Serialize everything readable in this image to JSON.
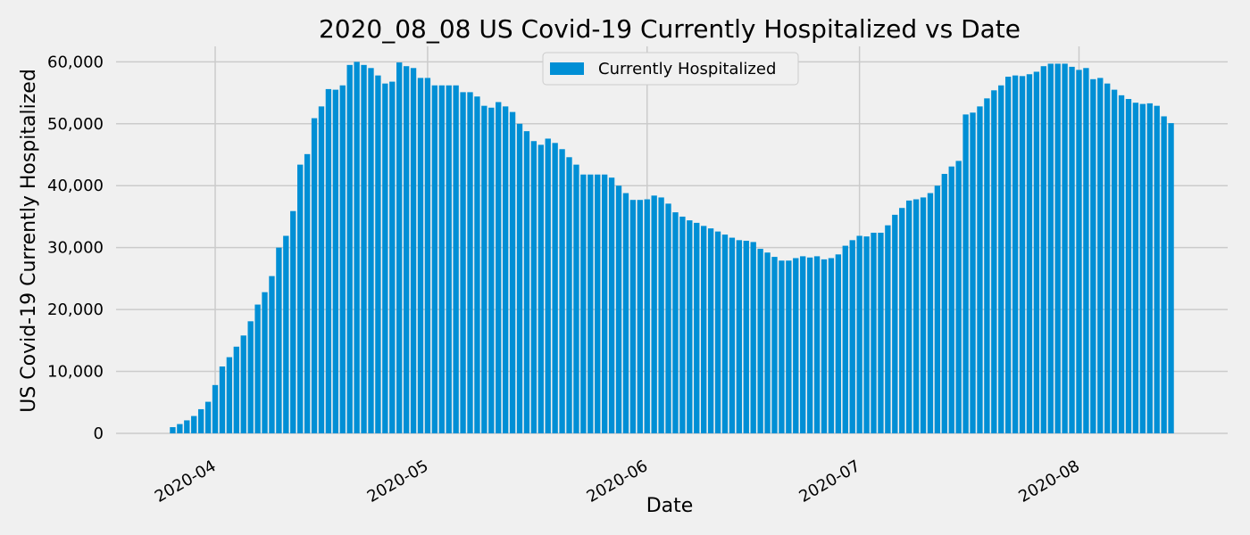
{
  "chart_data": {
    "type": "bar",
    "title": "2020_08_08  US Covid-19 Currently Hospitalized vs Date",
    "xlabel": "Date",
    "ylabel": "US Covid-19 Currently Hospitalized",
    "legend": {
      "label": "Currently Hospitalized",
      "placement": "top-center"
    },
    "grid": true,
    "bar_color": "#008fd5",
    "background_color": "#f0f0f0",
    "start_date": "2020-03-26",
    "end_date": "2020-08-08",
    "ylim": [
      0,
      62500
    ],
    "yticks": [
      0,
      10000,
      20000,
      30000,
      40000,
      50000,
      60000
    ],
    "ytick_labels": [
      "0",
      "10,000",
      "20,000",
      "30,000",
      "40,000",
      "50,000",
      "60,000"
    ],
    "xticks": [
      "2020-04-01",
      "2020-05-01",
      "2020-06-01",
      "2020-07-01",
      "2020-08-01"
    ],
    "xtick_labels": [
      "2020-04",
      "2020-05",
      "2020-06",
      "2020-07",
      "2020-08"
    ],
    "values": [
      1000,
      1500,
      2100,
      2800,
      3900,
      5100,
      7800,
      10800,
      12300,
      14000,
      15800,
      18100,
      20800,
      22800,
      25400,
      30000,
      31900,
      35900,
      43400,
      45100,
      50900,
      52800,
      55600,
      55500,
      56200,
      59500,
      60000,
      59500,
      59000,
      57800,
      56500,
      56800,
      59900,
      59300,
      59000,
      57400,
      57400,
      56200,
      56200,
      56200,
      56200,
      55100,
      55100,
      54400,
      52900,
      52600,
      53500,
      52800,
      51900,
      50000,
      48800,
      47200,
      46600,
      47600,
      46900,
      45900,
      44600,
      43400,
      41800,
      41800,
      41800,
      41800,
      41300,
      40000,
      38800,
      37700,
      37700,
      37800,
      38400,
      38100,
      37100,
      35700,
      35000,
      34400,
      34000,
      33500,
      33100,
      32600,
      32100,
      31600,
      31200,
      31100,
      30900,
      29800,
      29200,
      28500,
      27900,
      27900,
      28300,
      28600,
      28400,
      28600,
      28100,
      28300,
      28900,
      30300,
      31200,
      31900,
      31800,
      32400,
      32400,
      33600,
      35300,
      36400,
      37600,
      37800,
      38100,
      38800,
      40000,
      41900,
      43100,
      44000,
      51500,
      51800,
      52800,
      54100,
      55400,
      56200,
      57600,
      57800,
      57700,
      58000,
      58400,
      59300,
      59700,
      59700,
      59700,
      59200,
      58700,
      59000,
      57200,
      57400,
      56500,
      55500,
      54600,
      54000,
      53400,
      53200,
      53300,
      52900,
      51200,
      50100
    ]
  }
}
